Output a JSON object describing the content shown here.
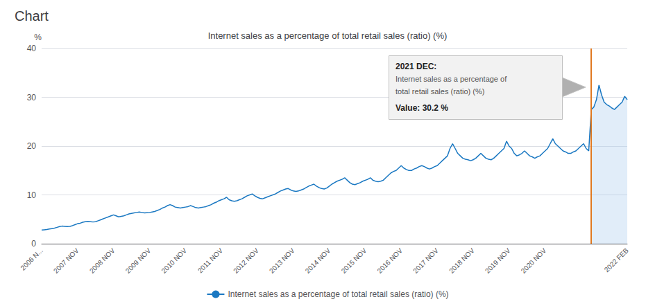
{
  "chart_data": {
    "type": "line",
    "header": "Chart",
    "title": "Internet sales as a percentage of total retail sales (ratio) (%)",
    "ylabel": "%",
    "categories": [
      "2006 N...",
      null,
      null,
      null,
      null,
      null,
      null,
      null,
      null,
      null,
      null,
      null,
      null,
      null,
      "2007 NOV",
      null,
      null,
      null,
      null,
      null,
      null,
      null,
      null,
      null,
      null,
      null,
      null,
      null,
      "2008 NOV",
      null,
      null,
      null,
      null,
      null,
      null,
      null,
      null,
      null,
      null,
      null,
      null,
      null,
      "2009 NOV",
      null,
      null,
      null,
      null,
      null,
      null,
      null,
      null,
      null,
      null,
      null,
      null,
      null,
      "2010 NOV",
      null,
      null,
      null,
      null,
      null,
      null,
      null,
      null,
      null,
      null,
      null,
      null,
      null,
      "2011 NOV",
      null,
      null,
      null,
      null,
      null,
      null,
      null,
      null,
      null,
      null,
      null,
      null,
      null,
      "2012 NOV",
      null,
      null,
      null,
      null,
      null,
      null,
      null,
      null,
      null,
      null,
      null,
      null,
      null,
      "2013 NOV",
      null,
      null,
      null,
      null,
      null,
      null,
      null,
      null,
      null,
      null,
      null,
      null,
      null,
      "2014 NOV",
      null,
      null,
      null,
      null,
      null,
      null,
      null,
      null,
      null,
      null,
      null,
      null,
      null,
      "2015 NOV",
      null,
      null,
      null,
      null,
      null,
      null,
      null,
      null,
      null,
      null,
      null,
      null,
      null,
      "2016 NOV",
      null,
      null,
      null,
      null,
      null,
      null,
      null,
      null,
      null,
      null,
      null,
      null,
      null,
      "2017 NOV",
      null,
      null,
      null,
      null,
      null,
      null,
      null,
      null,
      null,
      null,
      null,
      null,
      null,
      "2018 NOV",
      null,
      null,
      null,
      null,
      null,
      null,
      null,
      null,
      null,
      null,
      null,
      null,
      null,
      "2019 NOV",
      null,
      null,
      null,
      null,
      null,
      null,
      null,
      null,
      null,
      null,
      null,
      null,
      null,
      "2020 NOV",
      null,
      null,
      null,
      null,
      null,
      null,
      null,
      null,
      null,
      null,
      null,
      null,
      null,
      null,
      null,
      null,
      null,
      null,
      null,
      null,
      null,
      null,
      null,
      null,
      null,
      null,
      null,
      null,
      null,
      null,
      null,
      "2022 FEB"
    ],
    "series": [
      {
        "name": "Internet sales as a percentage of total retail sales (ratio) (%)",
        "color": "#1a78c2",
        "values": [
          2.8,
          2.85,
          2.9,
          3.0,
          3.1,
          3.2,
          3.35,
          3.5,
          3.6,
          3.55,
          3.5,
          3.55,
          3.7,
          3.9,
          4.1,
          4.2,
          4.4,
          4.5,
          4.55,
          4.5,
          4.45,
          4.5,
          4.7,
          4.9,
          5.1,
          5.3,
          5.5,
          5.7,
          5.9,
          5.7,
          5.5,
          5.6,
          5.7,
          5.9,
          6.1,
          6.2,
          6.3,
          6.4,
          6.5,
          6.4,
          6.3,
          6.35,
          6.4,
          6.5,
          6.6,
          6.8,
          7.0,
          7.3,
          7.5,
          7.8,
          8.0,
          7.8,
          7.5,
          7.4,
          7.3,
          7.4,
          7.5,
          7.6,
          7.8,
          7.6,
          7.4,
          7.3,
          7.4,
          7.5,
          7.6,
          7.8,
          8.0,
          8.3,
          8.5,
          8.8,
          9.0,
          9.2,
          9.5,
          9.0,
          8.8,
          8.7,
          8.8,
          9.0,
          9.2,
          9.5,
          9.8,
          10.0,
          10.2,
          9.8,
          9.5,
          9.3,
          9.2,
          9.4,
          9.6,
          9.8,
          10.0,
          10.2,
          10.5,
          10.8,
          11.0,
          11.2,
          11.3,
          11.0,
          10.8,
          10.7,
          10.8,
          11.0,
          11.2,
          11.5,
          11.8,
          12.0,
          12.2,
          11.8,
          11.5,
          11.3,
          11.2,
          11.4,
          11.8,
          12.2,
          12.5,
          12.8,
          13.0,
          13.2,
          13.5,
          13.0,
          12.5,
          12.2,
          12.1,
          12.3,
          12.5,
          12.8,
          13.0,
          13.2,
          13.5,
          13.0,
          12.8,
          12.7,
          12.8,
          13.0,
          13.5,
          14.0,
          14.5,
          14.8,
          15.0,
          15.5,
          16.0,
          15.5,
          15.2,
          15.0,
          15.0,
          15.3,
          15.5,
          15.8,
          16.0,
          15.8,
          15.5,
          15.3,
          15.5,
          15.8,
          16.0,
          16.5,
          17.0,
          17.5,
          18.0,
          19.5,
          20.5,
          19.5,
          18.5,
          18.0,
          17.5,
          17.3,
          17.2,
          17.0,
          17.2,
          17.5,
          18.0,
          18.5,
          18.0,
          17.5,
          17.3,
          17.2,
          17.5,
          18.0,
          18.5,
          19.0,
          19.5,
          21.0,
          20.0,
          19.5,
          18.5,
          18.0,
          18.2,
          18.5,
          19.0,
          18.5,
          18.0,
          17.8,
          17.5,
          17.8,
          18.0,
          18.5,
          19.0,
          19.5,
          20.5,
          21.5,
          20.5,
          20.0,
          19.5,
          19.0,
          18.8,
          18.5,
          18.5,
          18.8,
          19.0,
          19.5,
          20.0,
          20.5,
          19.5,
          19.0,
          27.5,
          28.0,
          29.5,
          32.5,
          30.5,
          29.0,
          28.5,
          28.2,
          27.8,
          27.5,
          28.0,
          28.5,
          29.0,
          30.2,
          29.5
        ]
      }
    ],
    "vline": {
      "at": 214,
      "color": "#e07820"
    },
    "highlight_color": "#aaccee",
    "annotations": [
      "2021 DEC:",
      "Internet sales as a percentage of",
      "total retail sales (ratio) (%)",
      "Value: 30.2 %"
    ],
    "ylim": [
      0,
      40
    ],
    "yticks": [
      0,
      10,
      20,
      30,
      40
    ],
    "grid": true,
    "legend": "bottom"
  }
}
